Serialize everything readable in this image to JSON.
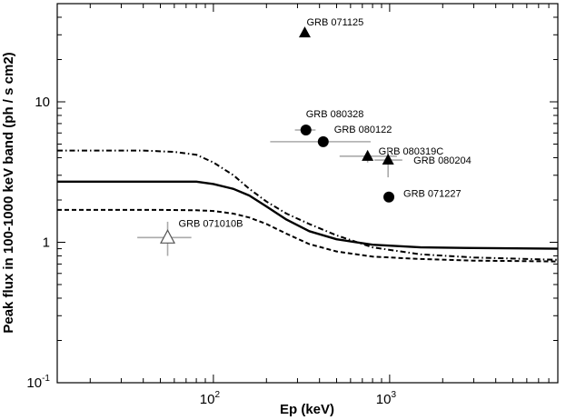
{
  "chart_data": {
    "type": "scatter",
    "xlabel": "Ep (keV)",
    "ylabel": "Peak flux in 100-1000 keV band (ph / s cm2)",
    "x_scale": "log",
    "y_scale": "log",
    "xlim": [
      13,
      9000
    ],
    "ylim": [
      0.1,
      50
    ],
    "grid": false,
    "x_ticks": [
      {
        "value": 100,
        "base": "10",
        "exp": "2"
      },
      {
        "value": 1000,
        "base": "10",
        "exp": "3"
      }
    ],
    "y_ticks": [
      {
        "value": 0.1,
        "base": "10",
        "exp": "-1"
      },
      {
        "value": 1,
        "base": "1",
        "exp": ""
      },
      {
        "value": 10,
        "base": "10",
        "exp": ""
      }
    ],
    "points": [
      {
        "name": "GRB 071125",
        "x": 330,
        "y": 31,
        "marker": "triangle-filled"
      },
      {
        "name": "GRB 080328",
        "x": 335,
        "y": 6.3,
        "marker": "circle-filled",
        "xerr": [
          290,
          380
        ],
        "yerr": [
          5.9,
          6.7
        ]
      },
      {
        "name": "GRB 080122",
        "x": 420,
        "y": 5.2,
        "marker": "circle-filled",
        "xerr": [
          210,
          780
        ],
        "yerr": [
          4.9,
          5.5
        ]
      },
      {
        "name": "GRB 080319C",
        "x": 750,
        "y": 4.1,
        "marker": "triangle-filled",
        "xerr": [
          520,
          1100
        ],
        "yerr": [
          3.7,
          4.5
        ]
      },
      {
        "name": "GRB 080204",
        "x": 980,
        "y": 3.85,
        "marker": "triangle-filled",
        "xerr": [
          820,
          1180
        ],
        "yerr": [
          2.9,
          4.6
        ]
      },
      {
        "name": "GRB 071227",
        "x": 990,
        "y": 2.1,
        "marker": "circle-filled"
      },
      {
        "name": "GRB 071010B",
        "x": 55,
        "y": 1.08,
        "marker": "triangle-open",
        "xerr": [
          37,
          75
        ],
        "yerr": [
          0.8,
          1.4
        ]
      }
    ],
    "curves": [
      {
        "style": "dashdot",
        "x": [
          13,
          40,
          60,
          80,
          100,
          130,
          160,
          200,
          260,
          350,
          500,
          800,
          1500,
          3000,
          9000
        ],
        "y": [
          4.5,
          4.5,
          4.4,
          4.2,
          3.7,
          3.0,
          2.4,
          1.95,
          1.6,
          1.35,
          1.12,
          0.92,
          0.82,
          0.78,
          0.75
        ]
      },
      {
        "style": "solid",
        "x": [
          13,
          50,
          80,
          100,
          130,
          160,
          200,
          260,
          350,
          500,
          800,
          1500,
          3000,
          9000
        ],
        "y": [
          2.7,
          2.7,
          2.7,
          2.6,
          2.4,
          2.15,
          1.8,
          1.45,
          1.2,
          1.05,
          0.96,
          0.92,
          0.91,
          0.9
        ]
      },
      {
        "style": "dashed",
        "x": [
          13,
          50,
          80,
          100,
          130,
          160,
          200,
          260,
          350,
          500,
          800,
          1500,
          3000,
          9000
        ],
        "y": [
          1.7,
          1.7,
          1.69,
          1.67,
          1.6,
          1.5,
          1.35,
          1.15,
          0.97,
          0.86,
          0.79,
          0.76,
          0.74,
          0.73
        ]
      }
    ]
  }
}
